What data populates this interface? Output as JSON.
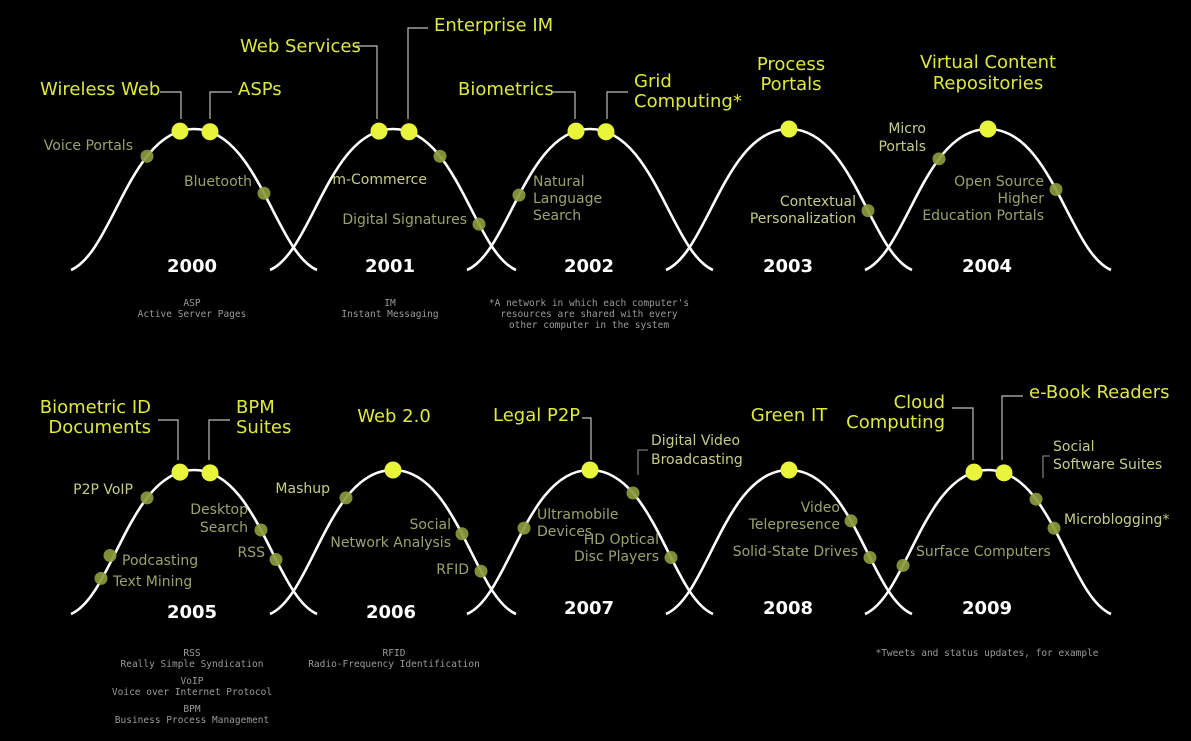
{
  "colors": {
    "background": "#000000",
    "curve": "#ffffff",
    "peak_dot": "#e8f53a",
    "peak_label": "#dfe83c",
    "side_dot": "#8a9a3c",
    "side_label": "#9aa36a",
    "year": "#ffffff",
    "note": "#9a9a9a"
  },
  "years": [
    {
      "year": "2000",
      "peak": [
        {
          "label": "Wireless Web"
        },
        {
          "label": "ASPs"
        }
      ],
      "side": [
        {
          "label": "Voice Portals"
        },
        {
          "label": "Bluetooth"
        }
      ],
      "notes": [
        "ASP",
        "Active Server Pages"
      ]
    },
    {
      "year": "2001",
      "peak": [
        {
          "label": "Web Services"
        },
        {
          "label": "Enterprise IM"
        }
      ],
      "side": [
        {
          "label": "m-Commerce"
        },
        {
          "label": "Digital Signatures"
        }
      ],
      "notes": [
        "IM",
        "Instant Messaging"
      ]
    },
    {
      "year": "2002",
      "peak": [
        {
          "label": "Biometrics"
        },
        {
          "label": "Grid Computing*"
        }
      ],
      "side": [
        {
          "label": "Natural Language Search"
        }
      ],
      "notes": [
        "*A network in which each computer's",
        "resources are shared with every",
        "other computer in the system"
      ]
    },
    {
      "year": "2003",
      "peak": [
        {
          "label": "Process Portals"
        }
      ],
      "side": [
        {
          "label": "Contextual Personalization"
        }
      ],
      "notes": []
    },
    {
      "year": "2004",
      "peak": [
        {
          "label": "Virtual Content Repositories"
        }
      ],
      "side": [
        {
          "label": "Micro Portals"
        },
        {
          "label": "Open Source Higher Education Portals"
        }
      ],
      "notes": []
    },
    {
      "year": "2005",
      "peak": [
        {
          "label": "Biometric ID Documents"
        },
        {
          "label": "BPM Suites"
        }
      ],
      "side": [
        {
          "label": "P2P VoIP"
        },
        {
          "label": "Desktop Search"
        },
        {
          "label": "RSS"
        },
        {
          "label": "Podcasting"
        },
        {
          "label": "Text Mining"
        }
      ],
      "notes": [
        "RSS",
        "Really Simple Syndication",
        "VoIP",
        "Voice over Internet Protocol",
        "BPM",
        "Business Process Management"
      ]
    },
    {
      "year": "2006",
      "peak": [
        {
          "label": "Web 2.0"
        }
      ],
      "side": [
        {
          "label": "Mashup"
        },
        {
          "label": "Social Network Analysis"
        },
        {
          "label": "RFID"
        }
      ],
      "notes": [
        "RFID",
        "Radio-Frequency Identification"
      ]
    },
    {
      "year": "2007",
      "peak": [
        {
          "label": "Legal P2P"
        }
      ],
      "side": [
        {
          "label": "Digital Video Broadcasting"
        },
        {
          "label": "Ultramobile Devices"
        },
        {
          "label": "HD Optical Disc Players"
        }
      ],
      "notes": []
    },
    {
      "year": "2008",
      "peak": [
        {
          "label": "Green IT"
        }
      ],
      "side": [
        {
          "label": "Video Telepresence"
        },
        {
          "label": "Solid-State Drives"
        }
      ],
      "notes": []
    },
    {
      "year": "2009",
      "peak": [
        {
          "label": "Cloud Computing"
        },
        {
          "label": "e-Book Readers"
        }
      ],
      "side": [
        {
          "label": "Social Software Suites"
        },
        {
          "label": "Microblogging*"
        },
        {
          "label": "Surface Computers"
        }
      ],
      "notes": [
        "*Tweets and status updates, for example"
      ]
    }
  ]
}
